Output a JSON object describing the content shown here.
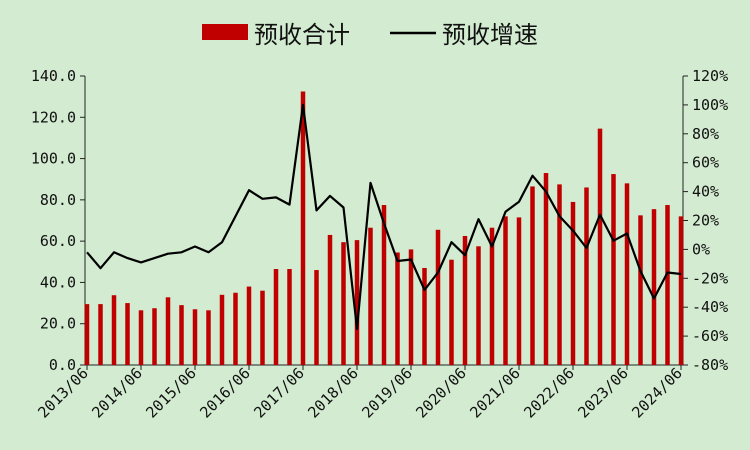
{
  "chart_data": {
    "type": "bar+line",
    "legend": [
      "预收合计",
      "预收增速"
    ],
    "legend_position": "top-center",
    "colors": {
      "bar": "#c00000",
      "line": "#000000",
      "background": "#d3ecd1"
    },
    "y_left": {
      "range": [
        0,
        140
      ],
      "ticks": [
        "0.0",
        "20.0",
        "40.0",
        "60.0",
        "80.0",
        "100.0",
        "120.0",
        "140.0"
      ]
    },
    "y_right": {
      "range": [
        -80,
        120
      ],
      "ticks": [
        "-80%",
        "-60%",
        "-40%",
        "-20%",
        "0%",
        "20%",
        "40%",
        "60%",
        "80%",
        "100%",
        "120%"
      ]
    },
    "x_labels": [
      "2013/06",
      "2014/06",
      "2015/06",
      "2016/06",
      "2017/06",
      "2018/06",
      "2019/06",
      "2020/06",
      "2021/06",
      "2022/06",
      "2023/06",
      "2024/06"
    ],
    "series": [
      {
        "name": "预收合计",
        "type": "bar",
        "values": [
          29.5,
          29.5,
          33.8,
          30.0,
          26.5,
          27.5,
          32.8,
          29.0,
          27.0,
          26.5,
          34.0,
          35.0,
          38.0,
          36.0,
          46.5,
          46.5,
          132.5,
          46.0,
          63.0,
          59.5,
          60.5,
          66.5,
          77.5,
          54.5,
          56.0,
          47.0,
          65.5,
          51.0,
          62.5,
          57.5,
          66.5,
          72.0,
          71.5,
          86.5,
          93.0,
          87.5,
          79.0,
          86.0,
          114.5,
          92.5,
          88.0,
          72.5,
          75.5,
          77.5,
          72.0
        ]
      },
      {
        "name": "预收增速",
        "type": "line",
        "values": [
          -2,
          -13,
          -2,
          -6,
          -9,
          -6,
          -3,
          -2,
          2,
          -2,
          5,
          23,
          41,
          35,
          36,
          31,
          100,
          27,
          37,
          29,
          -55,
          46,
          18,
          -8,
          -7,
          -28,
          -16,
          5,
          -4,
          21,
          2,
          26,
          33,
          51,
          40,
          23,
          13,
          1,
          24,
          6,
          11,
          -15,
          -34,
          -16,
          -17
        ]
      }
    ]
  }
}
